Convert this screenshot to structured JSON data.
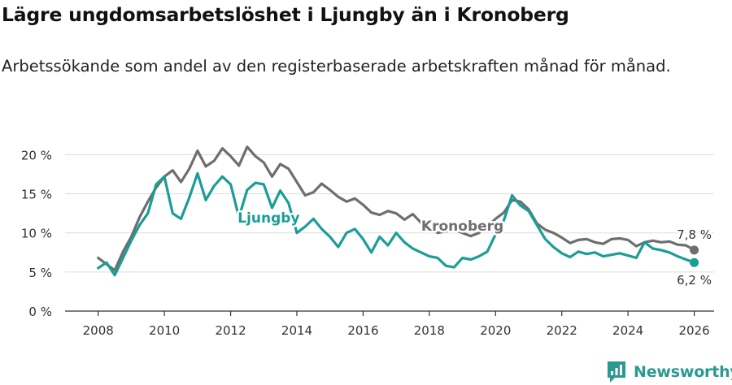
{
  "header": {
    "title": "Lägre ungdomsarbetslöshet i Ljungby än i Kronoberg",
    "subtitle": "Arbetssökande som andel av den registerbaserade arbetskraften månad för månad."
  },
  "brand": {
    "name": "Newsworthy"
  },
  "colors": {
    "ljungby": "#1a9e95",
    "kronoberg": "#6e6e6e",
    "grid": "#dddddd",
    "axis": "#333333"
  },
  "chart_data": {
    "type": "line",
    "title": "Lägre ungdomsarbetslöshet i Ljungby än i Kronoberg",
    "subtitle": "Arbetssökande som andel av den registerbaserade arbetskraften månad för månad.",
    "xlabel": "",
    "ylabel": "",
    "xlim": [
      2007,
      2026.6
    ],
    "ylim": [
      0,
      21.5
    ],
    "xticks": [
      2008,
      2010,
      2012,
      2014,
      2016,
      2018,
      2020,
      2022,
      2024,
      2026
    ],
    "xtick_labels": [
      "2008",
      "2010",
      "2012",
      "2014",
      "2016",
      "2018",
      "2020",
      "2022",
      "2024",
      "2026"
    ],
    "yticks": [
      0,
      5,
      10,
      15,
      20
    ],
    "ytick_labels": [
      "0 %",
      "5 %",
      "10 %",
      "15 %",
      "20 %"
    ],
    "grid": true,
    "series": [
      {
        "name": "Kronoberg",
        "label": "Kronoberg",
        "end_label": "7,8 %",
        "x": [
          2008.0,
          2008.25,
          2008.5,
          2008.75,
          2009.0,
          2009.25,
          2009.5,
          2009.75,
          2010.0,
          2010.25,
          2010.5,
          2010.75,
          2011.0,
          2011.25,
          2011.5,
          2011.75,
          2012.0,
          2012.25,
          2012.5,
          2012.75,
          2013.0,
          2013.25,
          2013.5,
          2013.75,
          2014.0,
          2014.25,
          2014.5,
          2014.75,
          2015.0,
          2015.25,
          2015.5,
          2015.75,
          2016.0,
          2016.25,
          2016.5,
          2016.75,
          2017.0,
          2017.25,
          2017.5,
          2017.75,
          2018.0,
          2018.25,
          2018.5,
          2018.75,
          2019.0,
          2019.25,
          2019.5,
          2019.75,
          2020.0,
          2020.25,
          2020.5,
          2020.75,
          2021.0,
          2021.25,
          2021.5,
          2021.75,
          2022.0,
          2022.25,
          2022.5,
          2022.75,
          2023.0,
          2023.25,
          2023.5,
          2023.75,
          2024.0,
          2024.25,
          2024.5,
          2024.75,
          2025.0,
          2025.25,
          2025.5,
          2025.75,
          2026.0
        ],
        "values": [
          6.8,
          6.0,
          5.2,
          7.6,
          9.5,
          12.0,
          14.0,
          15.8,
          17.2,
          18.0,
          16.5,
          18.2,
          20.5,
          18.5,
          19.2,
          20.8,
          19.8,
          18.6,
          21.0,
          19.8,
          19.0,
          17.2,
          18.8,
          18.2,
          16.5,
          14.8,
          15.2,
          16.3,
          15.5,
          14.6,
          14.0,
          14.4,
          13.6,
          12.6,
          12.3,
          12.8,
          12.5,
          11.7,
          12.4,
          11.3,
          10.7,
          10.0,
          10.2,
          10.4,
          10.0,
          9.6,
          10.0,
          10.8,
          11.8,
          12.6,
          14.2,
          14.0,
          13.0,
          11.2,
          10.4,
          10.0,
          9.4,
          8.7,
          9.1,
          9.2,
          8.8,
          8.6,
          9.2,
          9.3,
          9.1,
          8.3,
          8.8,
          9.0,
          8.8,
          8.9,
          8.5,
          8.4,
          7.8
        ]
      },
      {
        "name": "Ljungby",
        "label": "Ljungby",
        "end_label": "6,2 %",
        "x": [
          2008.0,
          2008.25,
          2008.5,
          2008.75,
          2009.0,
          2009.25,
          2009.5,
          2009.75,
          2010.0,
          2010.25,
          2010.5,
          2010.75,
          2011.0,
          2011.25,
          2011.5,
          2011.75,
          2012.0,
          2012.25,
          2012.5,
          2012.75,
          2013.0,
          2013.25,
          2013.5,
          2013.75,
          2014.0,
          2014.25,
          2014.5,
          2014.75,
          2015.0,
          2015.25,
          2015.5,
          2015.75,
          2016.0,
          2016.25,
          2016.5,
          2016.75,
          2017.0,
          2017.25,
          2017.5,
          2017.75,
          2018.0,
          2018.25,
          2018.5,
          2018.75,
          2019.0,
          2019.25,
          2019.5,
          2019.75,
          2020.0,
          2020.25,
          2020.5,
          2020.75,
          2021.0,
          2021.25,
          2021.5,
          2021.75,
          2022.0,
          2022.25,
          2022.5,
          2022.75,
          2023.0,
          2023.25,
          2023.5,
          2023.75,
          2024.0,
          2024.25,
          2024.5,
          2024.75,
          2025.0,
          2025.25,
          2025.5,
          2025.75,
          2026.0
        ],
        "values": [
          5.5,
          6.2,
          4.6,
          6.8,
          9.0,
          11.0,
          12.5,
          16.2,
          17.2,
          12.5,
          11.8,
          14.5,
          17.6,
          14.2,
          16.0,
          17.2,
          16.2,
          12.0,
          15.5,
          16.4,
          16.2,
          13.2,
          15.4,
          13.8,
          10.0,
          10.8,
          11.8,
          10.5,
          9.5,
          8.2,
          10.0,
          10.5,
          9.2,
          7.5,
          9.5,
          8.4,
          10.0,
          8.8,
          8.0,
          7.5,
          7.0,
          6.8,
          5.8,
          5.6,
          6.8,
          6.6,
          7.0,
          7.6,
          9.8,
          11.6,
          14.8,
          13.5,
          12.8,
          11.0,
          9.2,
          8.2,
          7.4,
          6.9,
          7.6,
          7.3,
          7.5,
          7.0,
          7.2,
          7.4,
          7.1,
          6.8,
          8.8,
          8.0,
          7.8,
          7.5,
          7.0,
          6.6,
          6.2
        ]
      }
    ]
  }
}
